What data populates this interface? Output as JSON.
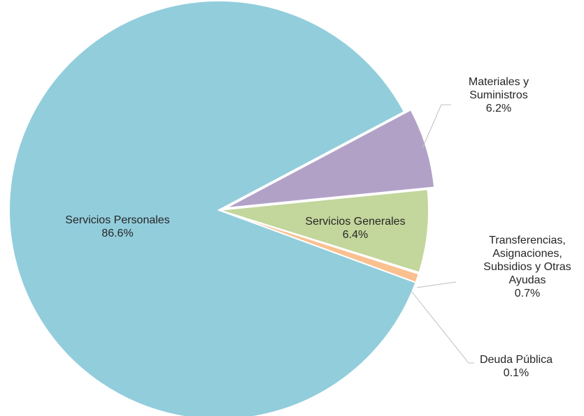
{
  "chart_data": {
    "type": "pie",
    "title": "",
    "slices": [
      {
        "label_lines": [
          "Servicios Personales"
        ],
        "pct_text": "86.6%",
        "value": 86.6,
        "color": "#92cddc"
      },
      {
        "label_lines": [
          "Materiales y",
          "Suministros"
        ],
        "pct_text": "6.2%",
        "value": 6.2,
        "color": "#b2a1c7"
      },
      {
        "label_lines": [
          "Servicios Generales"
        ],
        "pct_text": "6.4%",
        "value": 6.4,
        "color": "#c3d69b"
      },
      {
        "label_lines": [
          "Transferencias,",
          "Asignaciones,",
          "Subsidios y Otras",
          "Ayudas"
        ],
        "pct_text": "0.7%",
        "value": 0.7,
        "color": "#fac090"
      },
      {
        "label_lines": [
          "Deuda Pública"
        ],
        "pct_text": "0.1%",
        "value": 0.1,
        "color": "#d9d9d9"
      }
    ],
    "legend": "none",
    "label_style": "data labels with leader lines"
  }
}
